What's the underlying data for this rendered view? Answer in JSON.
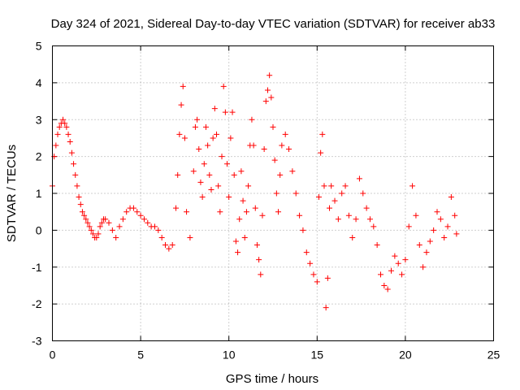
{
  "chart_data": {
    "type": "scatter",
    "title": "Day 324 of 2021, Sidereal Day-to-day VTEC variation (SDTVAR) for receiver ab33",
    "xlabel": "GPS time / hours",
    "ylabel": "SDTVAR / TECUs",
    "xlim": [
      0,
      25
    ],
    "ylim": [
      -3,
      5
    ],
    "xticks": [
      0,
      5,
      10,
      15,
      20,
      25
    ],
    "yticks": [
      -3,
      -2,
      -1,
      0,
      1,
      2,
      3,
      4,
      5
    ],
    "grid": true,
    "marker": "+",
    "series": [
      {
        "name": "SDTVAR",
        "color": "#ff0000",
        "x": [
          0.0,
          0.1,
          0.2,
          0.3,
          0.4,
          0.5,
          0.6,
          0.7,
          0.8,
          0.9,
          1.0,
          1.1,
          1.2,
          1.3,
          1.4,
          1.5,
          1.6,
          1.7,
          1.8,
          1.9,
          2.0,
          2.1,
          2.2,
          2.3,
          2.4,
          2.5,
          2.6,
          2.7,
          2.8,
          2.9,
          3.0,
          3.2,
          3.4,
          3.6,
          3.8,
          4.0,
          4.2,
          4.4,
          4.6,
          4.8,
          5.0,
          5.2,
          5.4,
          5.6,
          5.8,
          6.0,
          6.2,
          6.4,
          6.6,
          6.8,
          7.0,
          7.1,
          7.2,
          7.3,
          7.4,
          7.5,
          7.6,
          7.8,
          8.0,
          8.1,
          8.2,
          8.3,
          8.4,
          8.5,
          8.6,
          8.7,
          8.8,
          8.9,
          9.0,
          9.1,
          9.2,
          9.3,
          9.4,
          9.5,
          9.6,
          9.7,
          9.8,
          9.9,
          10.0,
          10.1,
          10.2,
          10.3,
          10.4,
          10.5,
          10.6,
          10.7,
          10.8,
          10.9,
          11.0,
          11.1,
          11.2,
          11.3,
          11.4,
          11.5,
          11.6,
          11.7,
          11.8,
          11.9,
          12.0,
          12.1,
          12.2,
          12.3,
          12.4,
          12.5,
          12.6,
          12.7,
          12.8,
          12.9,
          13.0,
          13.2,
          13.4,
          13.6,
          13.8,
          14.0,
          14.2,
          14.4,
          14.6,
          14.8,
          15.0,
          15.1,
          15.2,
          15.3,
          15.4,
          15.5,
          15.6,
          15.7,
          15.8,
          16.0,
          16.2,
          16.4,
          16.6,
          16.8,
          17.0,
          17.2,
          17.4,
          17.6,
          17.8,
          18.0,
          18.2,
          18.4,
          18.6,
          18.8,
          19.0,
          19.2,
          19.4,
          19.6,
          19.8,
          20.0,
          20.2,
          20.4,
          20.6,
          20.8,
          21.0,
          21.2,
          21.4,
          21.6,
          21.8,
          22.0,
          22.2,
          22.4,
          22.6,
          22.8,
          22.9
        ],
        "y": [
          1.2,
          2.0,
          2.3,
          2.6,
          2.8,
          2.9,
          3.0,
          2.9,
          2.8,
          2.6,
          2.4,
          2.1,
          1.8,
          1.5,
          1.2,
          0.9,
          0.7,
          0.5,
          0.4,
          0.3,
          0.2,
          0.1,
          0.0,
          -0.1,
          -0.2,
          -0.2,
          -0.1,
          0.1,
          0.2,
          0.3,
          0.3,
          0.2,
          0.0,
          -0.2,
          0.1,
          0.3,
          0.5,
          0.6,
          0.6,
          0.5,
          0.4,
          0.3,
          0.2,
          0.1,
          0.1,
          0.0,
          -0.2,
          -0.4,
          -0.5,
          -0.4,
          0.6,
          1.5,
          2.6,
          3.4,
          3.9,
          2.5,
          0.5,
          -0.2,
          1.6,
          2.8,
          3.0,
          2.2,
          1.3,
          0.9,
          1.8,
          2.8,
          2.3,
          1.5,
          1.1,
          2.5,
          3.3,
          2.6,
          1.2,
          0.5,
          2.0,
          3.9,
          3.2,
          1.8,
          0.9,
          2.5,
          3.2,
          1.5,
          -0.3,
          -0.6,
          0.3,
          1.6,
          0.8,
          -0.2,
          0.5,
          1.2,
          2.3,
          3.0,
          2.3,
          0.6,
          -0.4,
          -0.8,
          -1.2,
          0.4,
          2.2,
          3.5,
          3.8,
          4.2,
          3.6,
          2.8,
          1.9,
          1.0,
          0.5,
          1.5,
          2.3,
          2.6,
          2.2,
          1.6,
          1.0,
          0.4,
          0.0,
          -0.6,
          -0.9,
          -1.2,
          -1.4,
          0.9,
          2.1,
          2.6,
          1.2,
          -2.1,
          -1.3,
          0.6,
          1.2,
          0.8,
          0.3,
          1.0,
          1.2,
          0.4,
          -0.2,
          0.3,
          1.4,
          1.0,
          0.6,
          0.3,
          0.1,
          -0.4,
          -1.2,
          -1.5,
          -1.6,
          -1.1,
          -0.7,
          -0.9,
          -1.2,
          -0.8,
          0.1,
          1.2,
          0.4,
          -0.4,
          -1.0,
          -0.6,
          -0.3,
          0.0,
          0.5,
          0.3,
          -0.2,
          0.1,
          0.9,
          0.4,
          -0.1
        ]
      }
    ]
  }
}
